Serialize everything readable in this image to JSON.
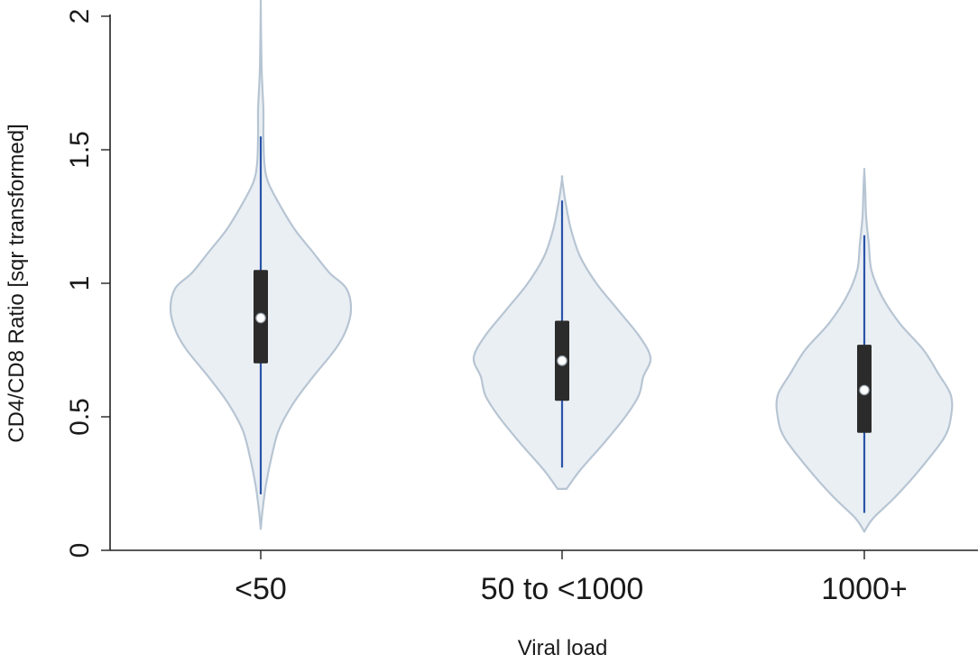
{
  "chart_data": {
    "type": "violin",
    "title": "",
    "xlabel": "Viral load",
    "ylabel": "CD4/CD8 Ratio [sqr transformed]",
    "ylim": [
      0,
      2
    ],
    "yticks": [
      0,
      0.5,
      1,
      1.5,
      2
    ],
    "ytick_labels": [
      "0",
      "0.5",
      "1",
      "1.5",
      "2"
    ],
    "grid": false,
    "legend": "none",
    "categories": [
      "<50",
      "50 to <1000",
      "1000+"
    ],
    "series": [
      {
        "category": "<50",
        "median": 0.87,
        "q1": 0.7,
        "q3": 1.05,
        "whisker_low": 0.21,
        "whisker_high": 1.55,
        "density": [
          [
            0.08,
            0.0
          ],
          [
            0.15,
            0.02
          ],
          [
            0.25,
            0.06
          ],
          [
            0.35,
            0.12
          ],
          [
            0.45,
            0.2
          ],
          [
            0.55,
            0.36
          ],
          [
            0.65,
            0.58
          ],
          [
            0.75,
            0.82
          ],
          [
            0.82,
            0.94
          ],
          [
            0.9,
            1.0
          ],
          [
            0.98,
            0.95
          ],
          [
            1.04,
            0.76
          ],
          [
            1.12,
            0.57
          ],
          [
            1.2,
            0.38
          ],
          [
            1.3,
            0.2
          ],
          [
            1.38,
            0.08
          ],
          [
            1.45,
            0.04
          ],
          [
            1.55,
            0.03
          ],
          [
            1.65,
            0.03
          ],
          [
            1.72,
            0.02
          ],
          [
            1.8,
            0.01
          ],
          [
            1.9,
            0.005
          ],
          [
            2.05,
            0.0
          ]
        ]
      },
      {
        "category": "50 to <1000",
        "median": 0.71,
        "q1": 0.56,
        "q3": 0.86,
        "whisker_low": 0.31,
        "whisker_high": 1.31,
        "density": [
          [
            0.23,
            0.05
          ],
          [
            0.3,
            0.2
          ],
          [
            0.4,
            0.46
          ],
          [
            0.5,
            0.7
          ],
          [
            0.58,
            0.85
          ],
          [
            0.65,
            0.9
          ],
          [
            0.72,
            0.98
          ],
          [
            0.8,
            0.86
          ],
          [
            0.9,
            0.62
          ],
          [
            1.0,
            0.38
          ],
          [
            1.1,
            0.2
          ],
          [
            1.2,
            0.1
          ],
          [
            1.3,
            0.04
          ],
          [
            1.39,
            0.0
          ]
        ]
      },
      {
        "category": "1000+",
        "median": 0.6,
        "q1": 0.44,
        "q3": 0.77,
        "whisker_low": 0.14,
        "whisker_high": 1.18,
        "density": [
          [
            0.07,
            0.0
          ],
          [
            0.12,
            0.1
          ],
          [
            0.2,
            0.35
          ],
          [
            0.3,
            0.62
          ],
          [
            0.42,
            0.9
          ],
          [
            0.5,
            0.98
          ],
          [
            0.58,
            0.98
          ],
          [
            0.66,
            0.84
          ],
          [
            0.75,
            0.67
          ],
          [
            0.85,
            0.4
          ],
          [
            0.95,
            0.2
          ],
          [
            1.05,
            0.08
          ],
          [
            1.15,
            0.05
          ],
          [
            1.25,
            0.02
          ],
          [
            1.35,
            0.01
          ],
          [
            1.42,
            0.0
          ]
        ]
      }
    ],
    "colors": {
      "violin_fill": "#eaeff4",
      "violin_stroke": "#b7c5d3",
      "whisker": "#2a54a8",
      "box": "#2b2b2b",
      "median_marker": "#ffffff"
    }
  }
}
